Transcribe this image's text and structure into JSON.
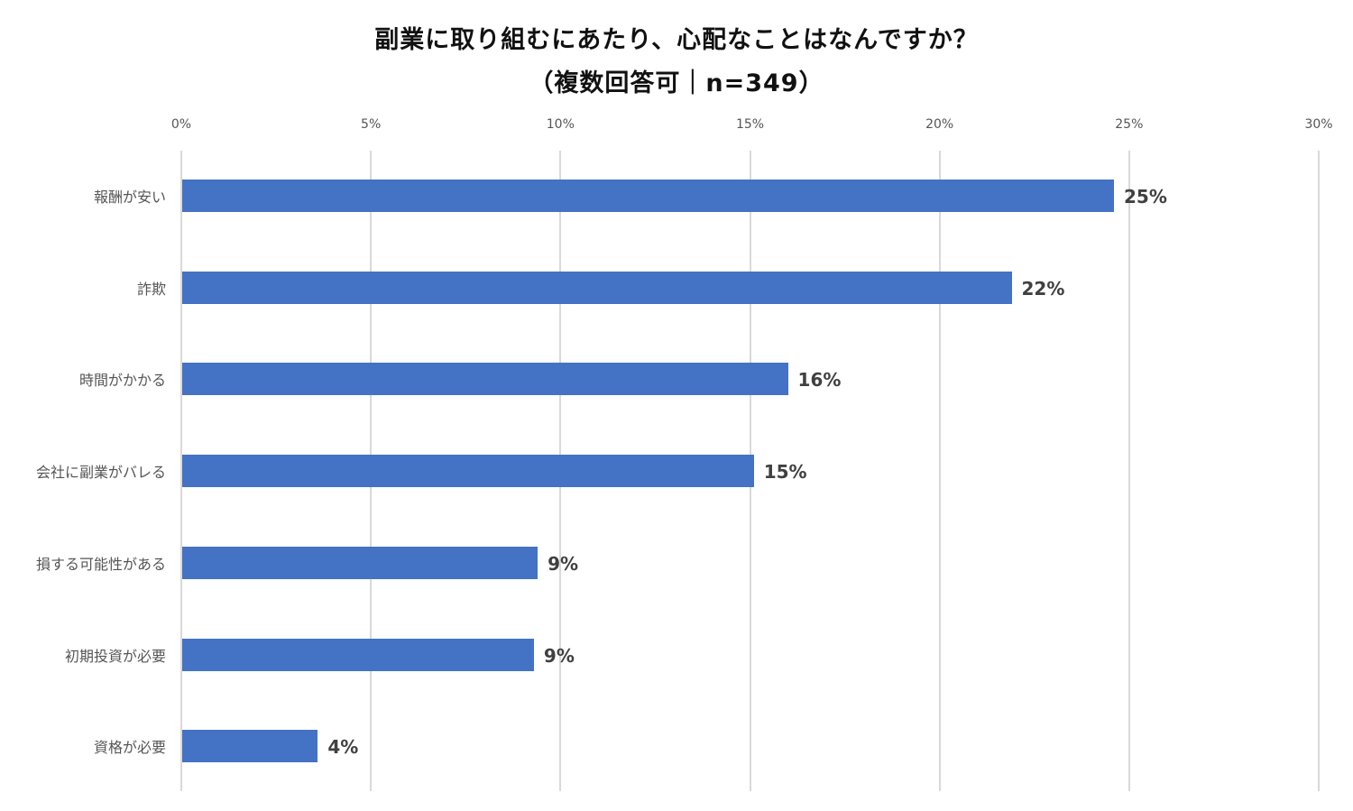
{
  "chart_data": {
    "type": "bar",
    "orientation": "horizontal",
    "title": "副業に取り組むにあたり、心配なことはなんですか？",
    "subtitle": "（複数回答可｜n=349）",
    "categories": [
      "報酬が安い",
      "詐欺",
      "時間がかかる",
      "会社に副業がバレる",
      "損する可能性がある",
      "初期投資が必要",
      "資格が必要"
    ],
    "values": [
      24.6,
      21.9,
      16.0,
      15.1,
      9.4,
      9.3,
      3.6
    ],
    "data_labels": [
      "25%",
      "22%",
      "16%",
      "15%",
      "9%",
      "9%",
      "4%"
    ],
    "xlabel": "",
    "ylabel": "",
    "xlim": [
      0,
      30
    ],
    "x_ticks": [
      "0%",
      "5%",
      "10%",
      "15%",
      "20%",
      "25%",
      "30%"
    ],
    "x_tick_values": [
      0,
      5,
      10,
      15,
      20,
      25,
      30
    ],
    "x_axis_position": "top",
    "grid": true,
    "legend": "none",
    "bar_color": "#4472c4"
  }
}
